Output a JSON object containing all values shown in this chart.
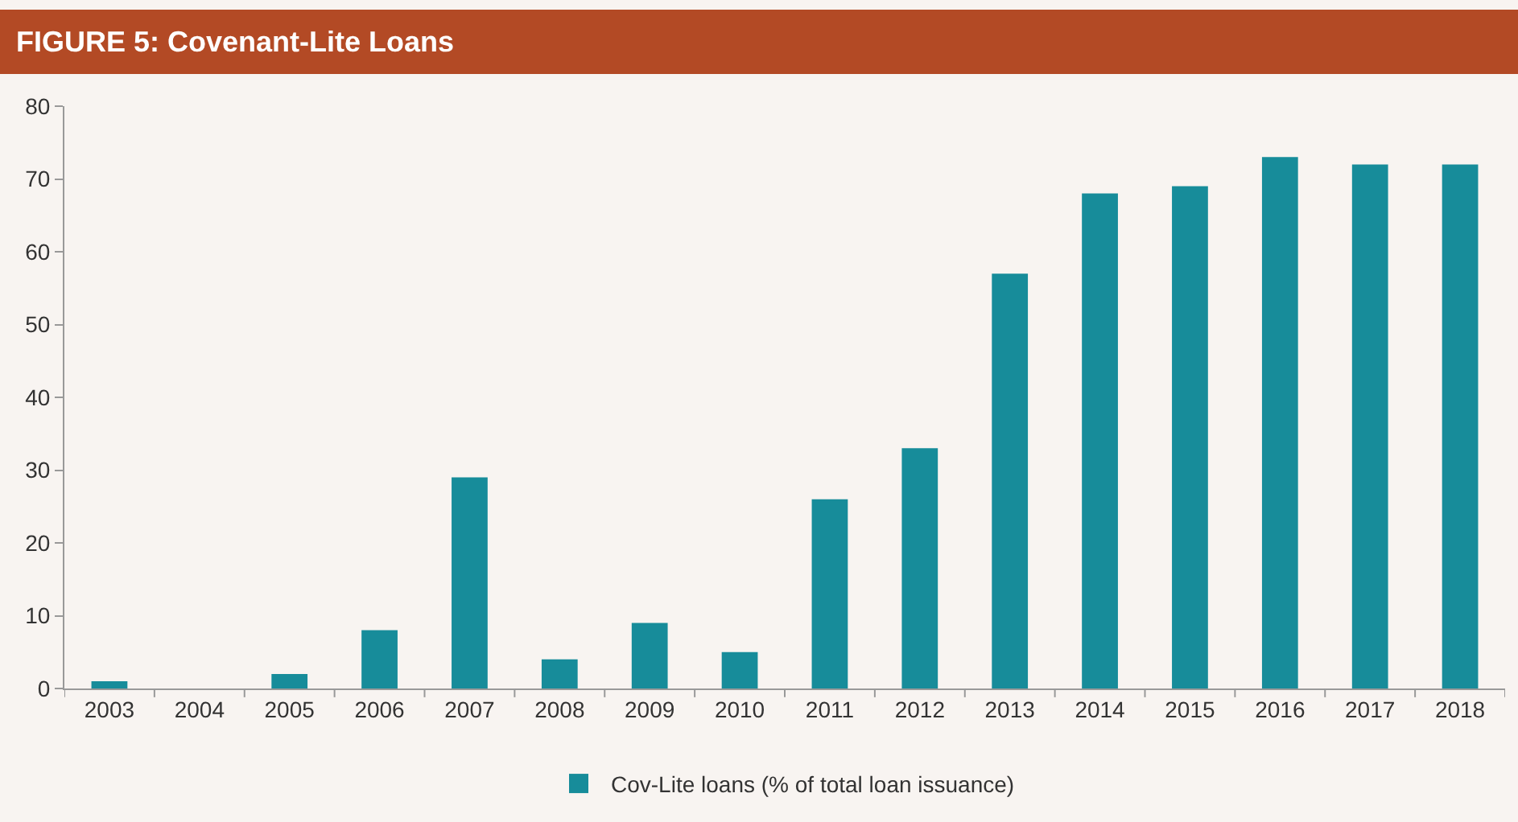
{
  "chart_data": {
    "type": "bar",
    "title": "FIGURE 5: Covenant-Lite Loans",
    "categories": [
      "2003",
      "2004",
      "2005",
      "2006",
      "2007",
      "2008",
      "2009",
      "2010",
      "2011",
      "2012",
      "2013",
      "2014",
      "2015",
      "2016",
      "2017",
      "2018"
    ],
    "series": [
      {
        "name": "Cov-Lite loans (% of total loan issuance)",
        "color": "#178c9a",
        "values": [
          1,
          0,
          2,
          8,
          29,
          4,
          9,
          5,
          26,
          33,
          57,
          68,
          69,
          73,
          72,
          72
        ]
      }
    ],
    "ylim": [
      0,
      80
    ],
    "yticks": [
      0,
      10,
      20,
      30,
      40,
      50,
      60,
      70,
      80
    ],
    "grid": false,
    "legend": "bottom"
  }
}
